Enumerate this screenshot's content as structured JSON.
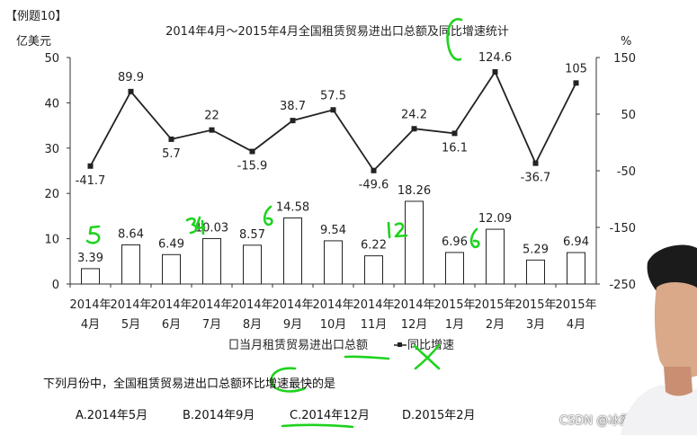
{
  "example_label": "【例题10】",
  "chart_data": {
    "type": "bar-line",
    "title": "2014年4月～2015年4月全国租赁贸易进出口总额及同比增速统计",
    "ylabel_left": "亿美元",
    "ylabel_right": "%",
    "ylim_left": [
      0,
      50
    ],
    "ylim_right": [
      -250,
      150
    ],
    "yticks_left": [
      "0",
      "10",
      "20",
      "30",
      "40",
      "50"
    ],
    "yticks_right": [
      "-250",
      "-150",
      "-50",
      "50",
      "150"
    ],
    "categories_year": [
      "2014年",
      "2014年",
      "2014年",
      "2014年",
      "2014年",
      "2014年",
      "2014年",
      "2014年",
      "2014年",
      "2015年",
      "2015年",
      "2015年",
      "2015年"
    ],
    "categories_month": [
      "4月",
      "5月",
      "6月",
      "7月",
      "8月",
      "9月",
      "10月",
      "11月",
      "12月",
      "1月",
      "2月",
      "3月",
      "4月"
    ],
    "bar_values": [
      3.39,
      8.64,
      6.49,
      10.03,
      8.57,
      14.58,
      9.54,
      6.22,
      18.26,
      6.96,
      12.09,
      5.29,
      6.94
    ],
    "bar_labels": [
      "3.39",
      "8.64",
      "6.49",
      "10.03",
      "8.57",
      "14.58",
      "9.54",
      "6.22",
      "18.26",
      "6.96",
      "12.09",
      "5.29",
      "6.94"
    ],
    "line_values": [
      -41.7,
      89.9,
      5.7,
      22,
      -15.9,
      38.7,
      57.5,
      -49.6,
      24.2,
      16.1,
      124.6,
      -36.7,
      105
    ],
    "line_labels": [
      "-41.7",
      "89.9",
      "5.7",
      "22",
      "-15.9",
      "38.7",
      "57.5",
      "-49.6",
      "24.2",
      "16.1",
      "124.6",
      "-36.7",
      "105"
    ],
    "legend": {
      "bar": "当月租赁贸易进出口总额",
      "line": "同比增速"
    },
    "legend_placement": "bottom-center"
  },
  "question": "下列月份中，全国租赁贸易进出口总额环比增速最快的是",
  "options": [
    "A.2014年5月",
    "B.2014年9月",
    "C.2014年12月",
    "D.2015年2月"
  ],
  "watermark": "CSDN @冰露可乐",
  "colors": {
    "annotation_green": "#1ed31e",
    "bar_fill": "#ffffff",
    "line": "#222222"
  }
}
